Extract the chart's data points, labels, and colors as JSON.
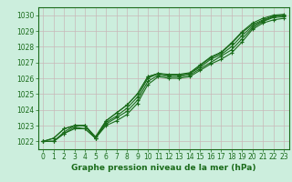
{
  "xlabel": "Graphe pression niveau de la mer (hPa)",
  "ylim": [
    1021.5,
    1030.5
  ],
  "xlim": [
    -0.5,
    23.5
  ],
  "yticks": [
    1022,
    1023,
    1024,
    1025,
    1026,
    1027,
    1028,
    1029,
    1030
  ],
  "xticks": [
    0,
    1,
    2,
    3,
    4,
    5,
    6,
    7,
    8,
    9,
    10,
    11,
    12,
    13,
    14,
    15,
    16,
    17,
    18,
    19,
    20,
    21,
    22,
    23
  ],
  "bg_color": "#cceedd",
  "grid_color_h": "#c8b8b8",
  "grid_color_v": "#c8b8b8",
  "line_color": "#1a6b1a",
  "series": [
    [
      1022.0,
      1022.0,
      1022.5,
      1022.8,
      1022.8,
      1022.2,
      1023.0,
      1023.3,
      1023.7,
      1024.4,
      1025.6,
      1026.1,
      1026.0,
      1026.0,
      1026.1,
      1026.5,
      1026.9,
      1027.2,
      1027.6,
      1028.3,
      1029.1,
      1029.5,
      1029.7,
      1029.8
    ],
    [
      1022.0,
      1022.0,
      1022.5,
      1022.9,
      1022.8,
      1022.2,
      1023.1,
      1023.5,
      1023.9,
      1024.6,
      1025.8,
      1026.2,
      1026.1,
      1026.1,
      1026.2,
      1026.6,
      1027.0,
      1027.4,
      1027.8,
      1028.5,
      1029.2,
      1029.6,
      1029.85,
      1029.9
    ],
    [
      1022.0,
      1022.0,
      1022.6,
      1023.0,
      1023.0,
      1022.2,
      1023.2,
      1023.6,
      1024.1,
      1024.8,
      1026.0,
      1026.3,
      1026.2,
      1026.2,
      1026.3,
      1026.7,
      1027.2,
      1027.5,
      1028.0,
      1028.7,
      1029.3,
      1029.65,
      1029.9,
      1030.0
    ],
    [
      1022.0,
      1022.2,
      1022.8,
      1023.0,
      1023.0,
      1022.2,
      1023.3,
      1023.8,
      1024.3,
      1025.0,
      1026.1,
      1026.3,
      1026.2,
      1026.2,
      1026.3,
      1026.8,
      1027.3,
      1027.6,
      1028.2,
      1028.9,
      1029.4,
      1029.7,
      1029.95,
      1030.0
    ],
    [
      1022.0,
      1022.2,
      1022.8,
      1023.0,
      1023.0,
      1022.3,
      1023.3,
      1023.8,
      1024.3,
      1025.0,
      1026.1,
      1026.3,
      1026.25,
      1026.25,
      1026.35,
      1026.85,
      1027.35,
      1027.65,
      1028.25,
      1028.95,
      1029.5,
      1029.8,
      1030.0,
      1030.05
    ]
  ],
  "marker": "+",
  "markersize": 3,
  "linewidth": 0.8,
  "font_color": "#1a6b1a",
  "label_fontsize": 6.5,
  "tick_fontsize": 5.5
}
